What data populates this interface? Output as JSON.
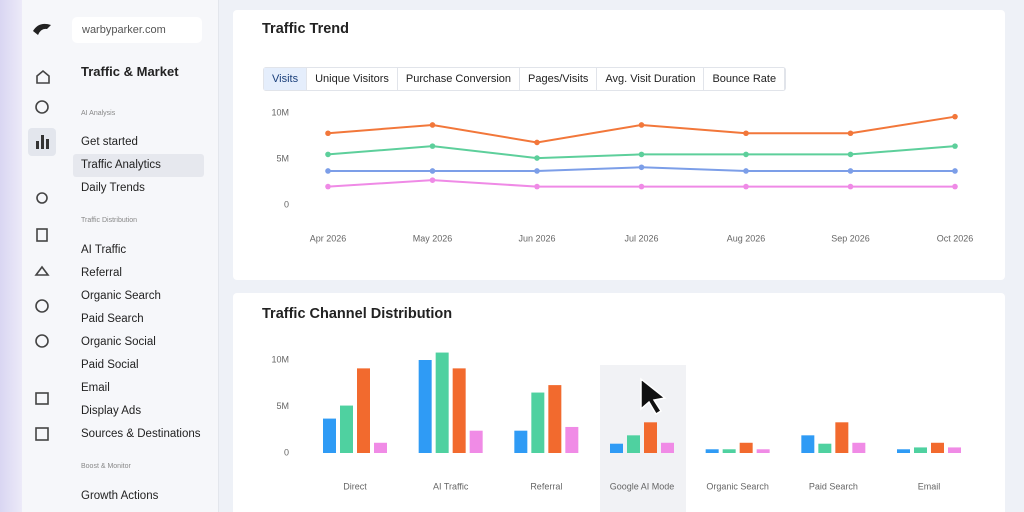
{
  "sidebar": {
    "site": "warbyparker.com",
    "title": "Traffic & Market",
    "sections": [
      {
        "heading": "AI Analysis",
        "items": [
          "Get started",
          "Traffic Analytics",
          "Daily Trends"
        ]
      },
      {
        "heading": "Traffic Distribution",
        "items": [
          "AI Traffic",
          "Referral",
          "Organic Search",
          "Paid Search",
          "Organic Social",
          "Paid Social",
          "Email",
          "Display Ads",
          "Sources & Destinations"
        ]
      },
      {
        "heading": "Boost & Monitor",
        "items": [
          "Growth Actions"
        ]
      }
    ]
  },
  "tabs": [
    "Visits",
    "Unique Visitors",
    "Purchase Conversion",
    "Pages/Visits",
    "Avg. Visit Duration",
    "Bounce Rate"
  ],
  "chart_data": [
    {
      "type": "line",
      "title": "Traffic Trend",
      "x": [
        "Apr 2026",
        "May 2026",
        "Jun 2026",
        "Jul 2026",
        "Aug 2026",
        "Sep 2026",
        "Oct 2026"
      ],
      "series": [
        {
          "color": "#f2773a",
          "values": [
            7800000,
            8700000,
            6800000,
            8700000,
            7800000,
            7800000,
            9600000
          ]
        },
        {
          "color": "#5dcf9b",
          "values": [
            5500000,
            6400000,
            5100000,
            5500000,
            5500000,
            5500000,
            6400000
          ]
        },
        {
          "color": "#7c9ee8",
          "values": [
            3700000,
            3700000,
            3700000,
            4100000,
            3700000,
            3700000,
            3700000
          ]
        },
        {
          "color": "#ef8ae6",
          "values": [
            2000000,
            2700000,
            2000000,
            2000000,
            2000000,
            2000000,
            2000000
          ]
        }
      ],
      "ylim": [
        0,
        10000000
      ],
      "yticks": [
        {
          "value": 0,
          "label": "0"
        },
        {
          "value": 5000000,
          "label": "5M"
        },
        {
          "value": 10000000,
          "label": "10M"
        }
      ],
      "grid": false
    },
    {
      "type": "bar",
      "title": "Traffic Channel Distribution",
      "categories": [
        "Direct",
        "AI Traffic",
        "Referral",
        "Google AI Mode",
        "Organic Search",
        "Paid Search",
        "Email"
      ],
      "series": [
        {
          "color": "#2f9bf5",
          "values": [
            3700000,
            10000000,
            2400000,
            1000000,
            400000,
            1900000,
            400000
          ]
        },
        {
          "color": "#4fd1a0",
          "values": [
            5100000,
            10800000,
            6500000,
            1900000,
            400000,
            1000000,
            600000
          ]
        },
        {
          "color": "#f26a2e",
          "values": [
            9100000,
            9100000,
            7300000,
            3300000,
            1100000,
            3300000,
            1100000
          ]
        },
        {
          "color": "#f08be6",
          "values": [
            1100000,
            2400000,
            2800000,
            1100000,
            400000,
            1100000,
            600000
          ]
        }
      ],
      "ylim": [
        0,
        10000000
      ],
      "yticks": [
        {
          "value": 0,
          "label": "0"
        },
        {
          "value": 5000000,
          "label": "5M"
        },
        {
          "value": 10000000,
          "label": "10M"
        }
      ],
      "grid": false
    }
  ]
}
